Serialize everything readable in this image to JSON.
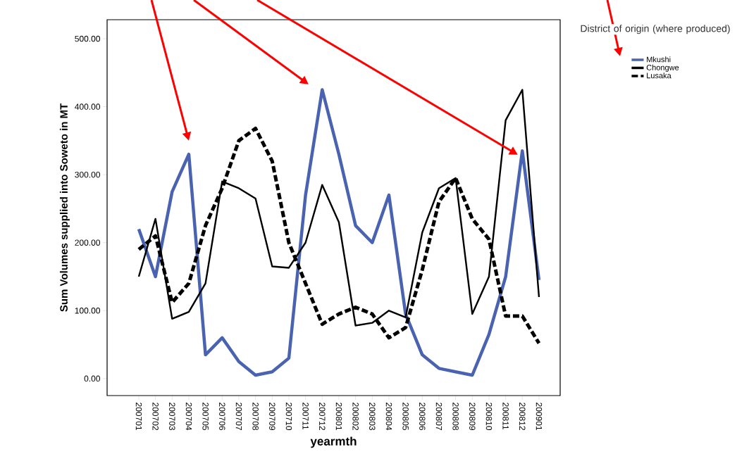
{
  "chart_data": {
    "type": "line",
    "xlabel": "yearmth",
    "ylabel": "Sum Volumes supplied into Soweto in MT",
    "legend_title": "District of origin (where produced)",
    "categories": [
      "200701",
      "200702",
      "200703",
      "200704",
      "200705",
      "200706",
      "200707",
      "200708",
      "200709",
      "200710",
      "200711",
      "200712",
      "200801",
      "200802",
      "200803",
      "200804",
      "200805",
      "200806",
      "200807",
      "200808",
      "200809",
      "200810",
      "200811",
      "200812",
      "200901"
    ],
    "series": [
      {
        "name": "Mkushi",
        "color": "#4a63b0",
        "line_style": "solid",
        "values": [
          220,
          150,
          275,
          330,
          35,
          60,
          25,
          5,
          10,
          30,
          270,
          425,
          330,
          225,
          200,
          270,
          95,
          35,
          15,
          10,
          5,
          65,
          150,
          335,
          145
        ]
      },
      {
        "name": "Chongwe",
        "color": "#000000",
        "line_style": "solid",
        "values": [
          150,
          235,
          88,
          98,
          140,
          290,
          280,
          265,
          165,
          163,
          200,
          285,
          230,
          78,
          82,
          100,
          90,
          215,
          280,
          295,
          95,
          150,
          380,
          425,
          120
        ]
      },
      {
        "name": "Lusaka",
        "color": "#000000",
        "line_style": "dashed",
        "values": [
          190,
          210,
          112,
          140,
          225,
          280,
          350,
          368,
          320,
          200,
          140,
          80,
          95,
          105,
          95,
          60,
          75,
          160,
          260,
          295,
          235,
          205,
          92,
          92,
          52
        ]
      }
    ],
    "ylim": [
      -25,
      528
    ],
    "yticks": [
      {
        "value": 0,
        "label": "0.00"
      },
      {
        "value": 100,
        "label": "100.00"
      },
      {
        "value": 200,
        "label": "200.00"
      },
      {
        "value": 300,
        "label": "300.00"
      },
      {
        "value": 400,
        "label": "400.00"
      },
      {
        "value": 500,
        "label": "500.00"
      }
    ],
    "grid": false,
    "legend": "top right",
    "marker": "none"
  }
}
